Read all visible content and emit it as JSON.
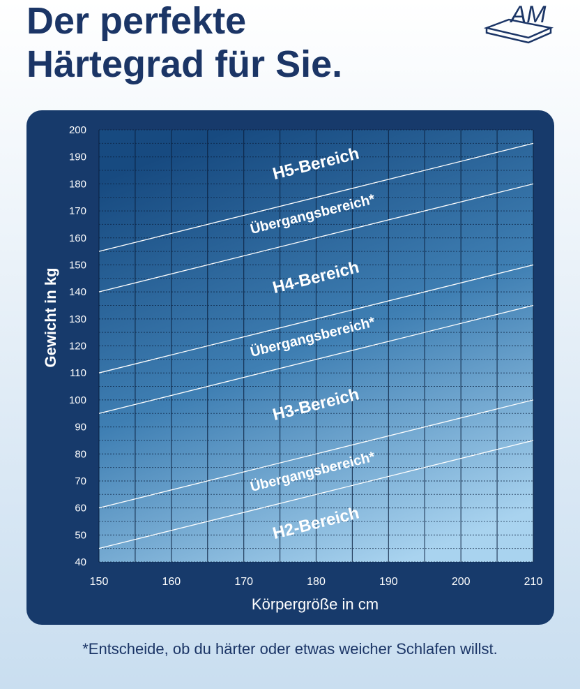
{
  "chart_data": {
    "type": "line",
    "title_lines": [
      "Der perfekte",
      "Härtegrad für Sie."
    ],
    "logo": "AM",
    "x_label": "Körpergröße in cm",
    "y_label": "Gewicht in kg",
    "x": [
      150,
      210
    ],
    "lines": [
      {
        "values": [
          155,
          195
        ]
      },
      {
        "values": [
          140,
          180
        ]
      },
      {
        "values": [
          110,
          150
        ]
      },
      {
        "values": [
          95,
          135
        ]
      },
      {
        "values": [
          60,
          100
        ]
      },
      {
        "values": [
          45,
          85
        ]
      }
    ],
    "line_color": "#ffffff",
    "annotations": [
      "H5-Bereich",
      "Übergangsbereich*",
      "H4-Bereich",
      "Übergangsbereich*",
      "H3-Bereich",
      "Übergangsbereich*",
      "H2-Bereich"
    ],
    "xlim": [
      150,
      210
    ],
    "ylim": [
      40,
      200
    ],
    "xticks": [
      150,
      160,
      170,
      180,
      190,
      200,
      210
    ],
    "yticks": [
      40,
      50,
      60,
      70,
      80,
      90,
      100,
      110,
      120,
      130,
      140,
      150,
      160,
      170,
      180,
      190,
      200
    ],
    "grid": true,
    "footnote": "*Entscheide, ob du härter oder etwas weicher Schlafen willst."
  }
}
